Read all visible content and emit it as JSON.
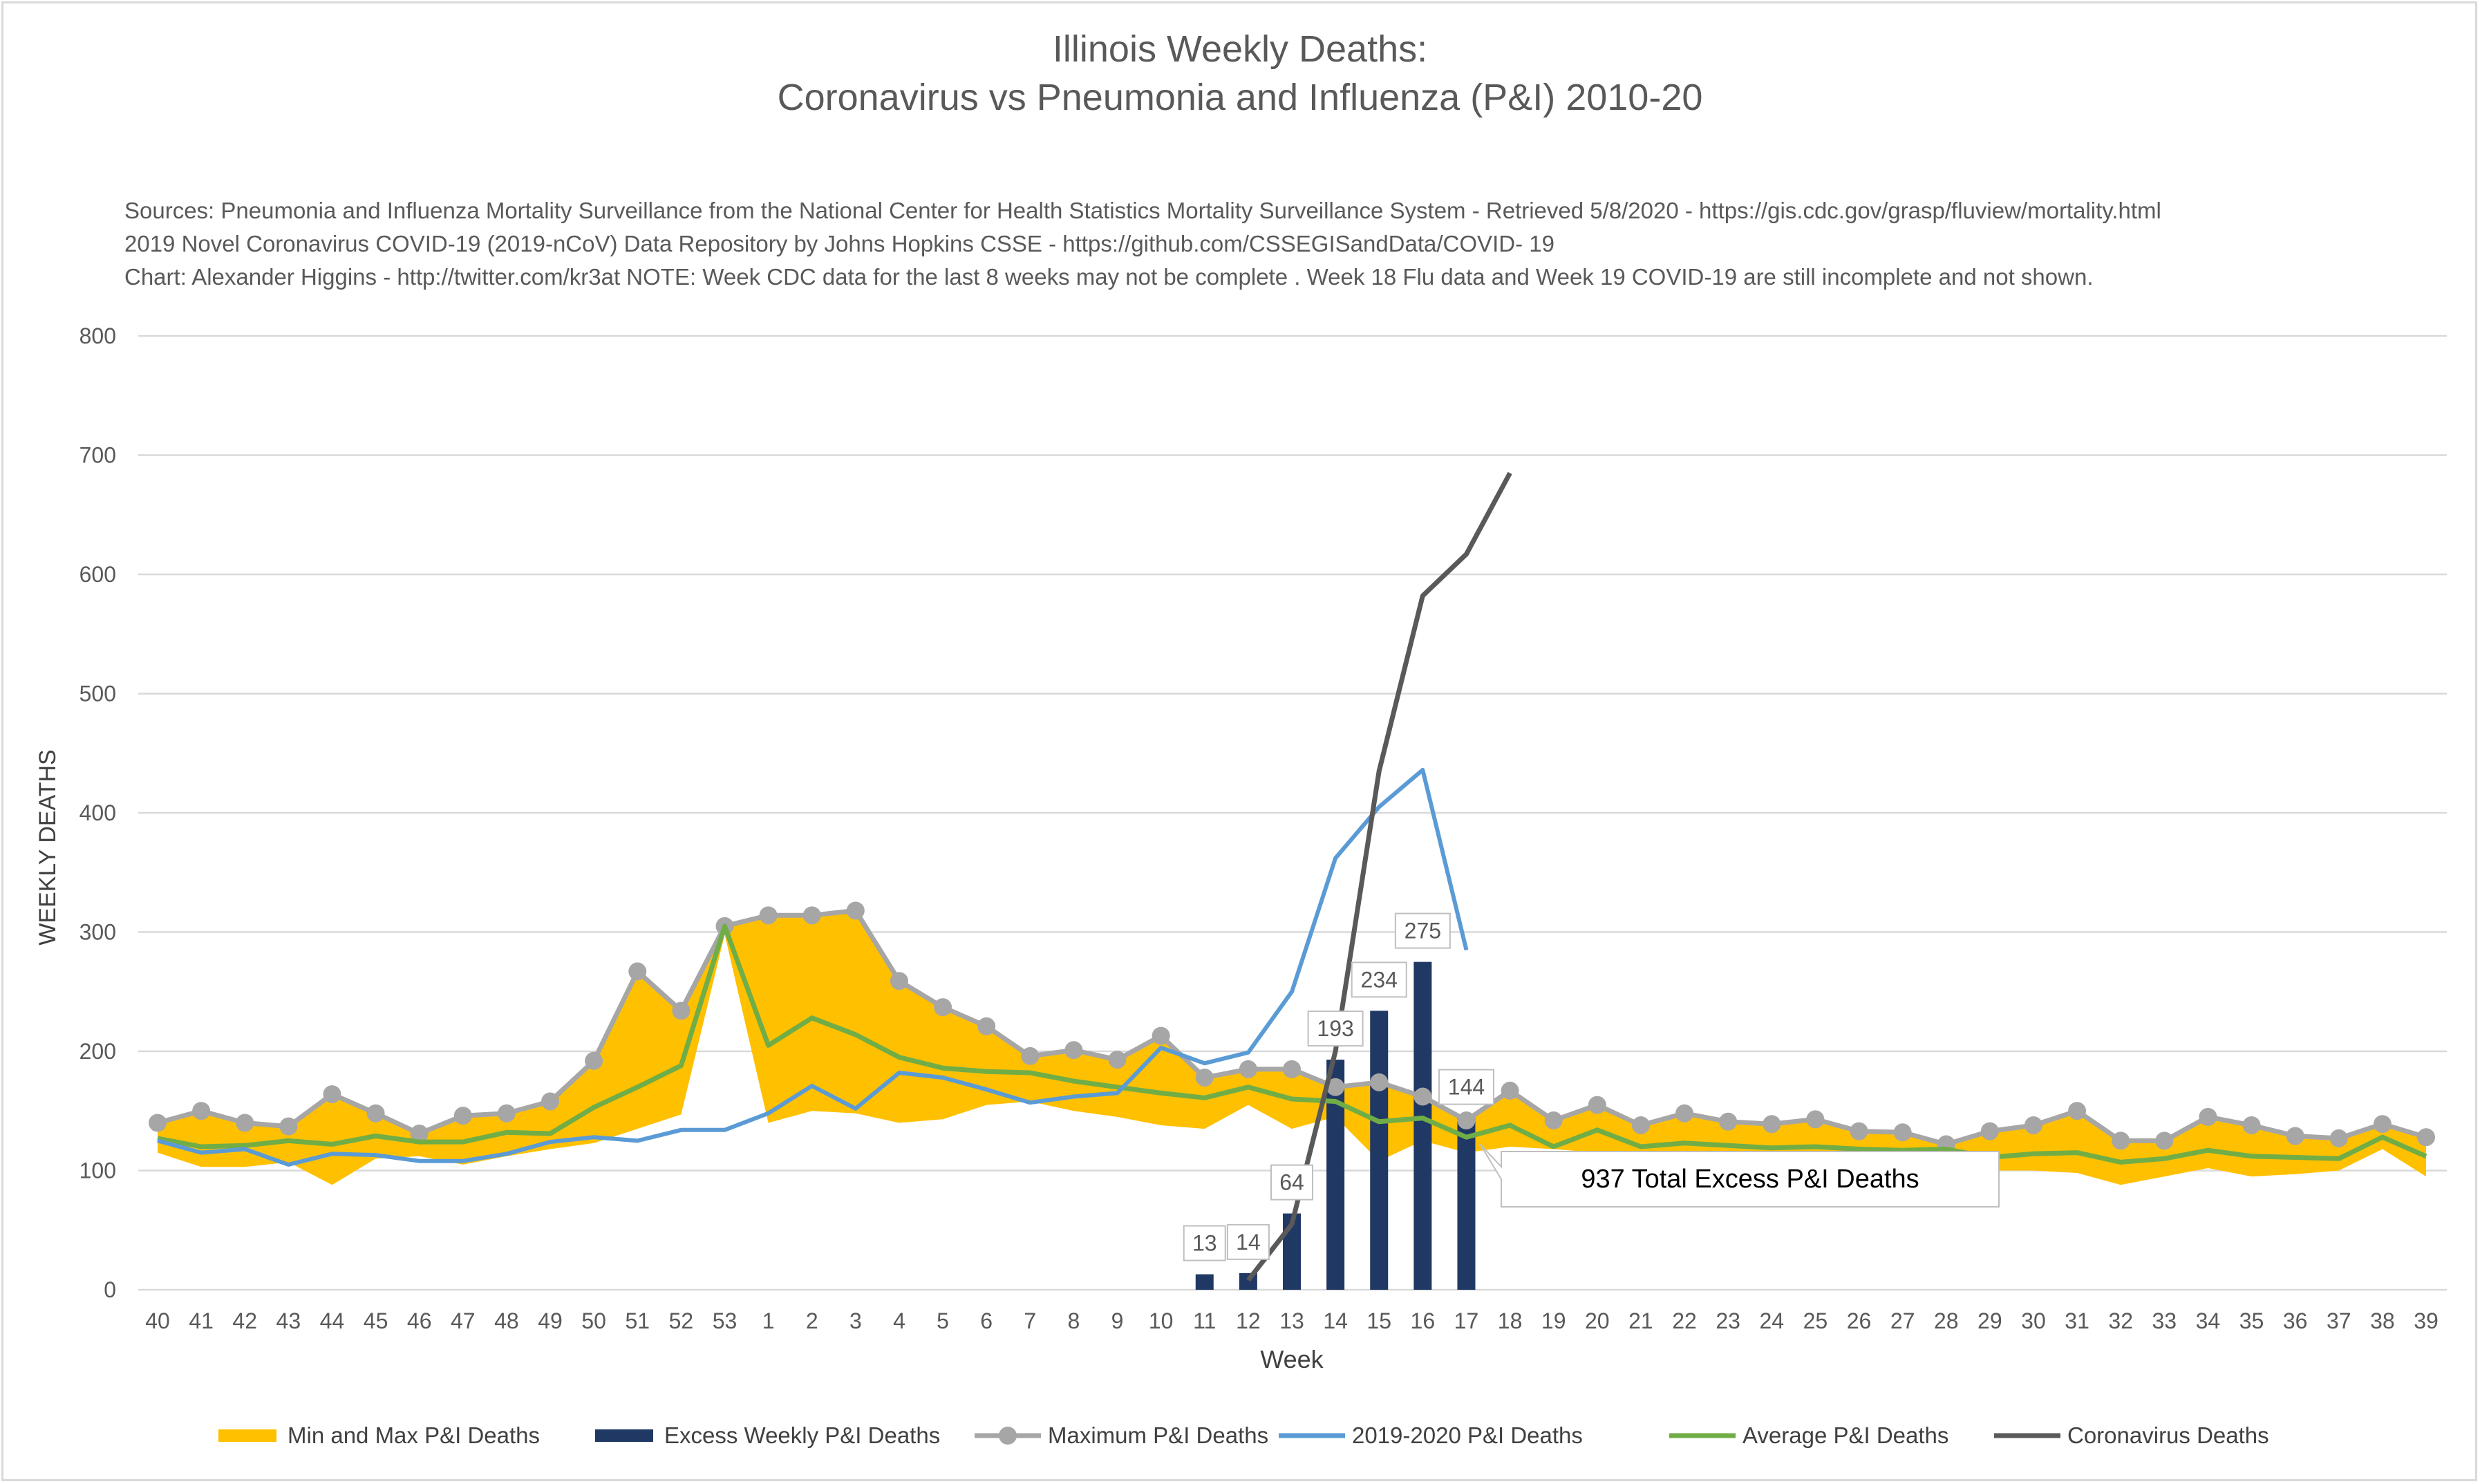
{
  "title_line1": "Illinois Weekly Deaths:",
  "title_line2": "Coronavirus vs Pneumonia and Influenza (P&I) 2010-20",
  "sources": [
    "Sources: Pneumonia and Influenza Mortality Surveillance from the National Center for Health Statistics Mortality Surveillance System - Retrieved 5/8/2020 - https://gis.cdc.gov/grasp/fluview/mortality.html",
    "2019 Novel Coronavirus COVID-19 (2019-nCoV) Data Repository by Johns Hopkins CSSE - https://github.com/CSSEGISandData/COVID- 19",
    "Chart: Alexander Higgins - http://twitter.com/kr3at   NOTE: Week CDC data for the last 8 weeks may not be complete . Week 18 Flu data and Week 19 COVID-19 are still incomplete and not shown."
  ],
  "chart_data": {
    "type": "line",
    "xlabel": "Week",
    "ylabel": "WEEKLY DEATHS",
    "ylim": [
      0,
      800
    ],
    "yticks": [
      0,
      100,
      200,
      300,
      400,
      500,
      600,
      700,
      800
    ],
    "grid": true,
    "legend_position": "bottom",
    "categories": [
      "40",
      "41",
      "42",
      "43",
      "44",
      "45",
      "46",
      "47",
      "48",
      "49",
      "50",
      "51",
      "52",
      "53",
      "1",
      "2",
      "3",
      "4",
      "5",
      "6",
      "7",
      "8",
      "9",
      "10",
      "11",
      "12",
      "13",
      "14",
      "15",
      "16",
      "17",
      "18",
      "19",
      "20",
      "21",
      "22",
      "23",
      "24",
      "25",
      "26",
      "27",
      "28",
      "29",
      "30",
      "31",
      "32",
      "33",
      "34",
      "35",
      "36",
      "37",
      "38",
      "39"
    ],
    "series": [
      {
        "name": "Min and Max P&I Deaths",
        "kind": "band",
        "color": "#ffc000",
        "lower": [
          115,
          103,
          103,
          107,
          88,
          110,
          112,
          105,
          112,
          118,
          123,
          135,
          147,
          298,
          140,
          150,
          148,
          140,
          143,
          155,
          158,
          150,
          145,
          138,
          135,
          155,
          135,
          145,
          108,
          125,
          115,
          120,
          118,
          115,
          112,
          115,
          112,
          110,
          115,
          112,
          110,
          115,
          100,
          100,
          98,
          88,
          95,
          102,
          95,
          97,
          100,
          118,
          95
        ],
        "upper": [
          140,
          150,
          140,
          137,
          164,
          148,
          131,
          146,
          148,
          158,
          192,
          267,
          234,
          305,
          314,
          314,
          318,
          259,
          237,
          221,
          196,
          201,
          193,
          213,
          178,
          185,
          185,
          170,
          174,
          162,
          142,
          167,
          142,
          155,
          138,
          148,
          141,
          139,
          143,
          133,
          132,
          122,
          133,
          138,
          150,
          125,
          125,
          145,
          138,
          129,
          127,
          139,
          128
        ]
      },
      {
        "name": "Excess Weekly P&I Deaths",
        "kind": "bar",
        "color": "#203864",
        "values": [
          null,
          null,
          null,
          null,
          null,
          null,
          null,
          null,
          null,
          null,
          null,
          null,
          null,
          null,
          null,
          null,
          null,
          null,
          null,
          null,
          null,
          null,
          null,
          null,
          13,
          14,
          64,
          193,
          234,
          275,
          144,
          null,
          null,
          null,
          null,
          null,
          null,
          null,
          null,
          null,
          null,
          null,
          null,
          null,
          null,
          null,
          null,
          null,
          null,
          null,
          null,
          null,
          null
        ]
      },
      {
        "name": "Maximum P&I Deaths",
        "kind": "line-marker",
        "color": "#a6a6a6",
        "values": [
          140,
          150,
          140,
          137,
          164,
          148,
          131,
          146,
          148,
          158,
          192,
          267,
          234,
          305,
          314,
          314,
          318,
          259,
          237,
          221,
          196,
          201,
          193,
          213,
          178,
          185,
          185,
          170,
          174,
          162,
          142,
          167,
          142,
          155,
          138,
          148,
          141,
          139,
          143,
          133,
          132,
          122,
          133,
          138,
          150,
          125,
          125,
          145,
          138,
          129,
          127,
          139,
          128
        ]
      },
      {
        "name": "2019-2020 P&I Deaths",
        "kind": "line",
        "color": "#5b9bd5",
        "values": [
          125,
          115,
          118,
          105,
          114,
          113,
          108,
          108,
          114,
          124,
          128,
          125,
          134,
          134,
          148,
          171,
          152,
          182,
          178,
          168,
          157,
          162,
          165,
          203,
          190,
          199,
          250,
          362,
          405,
          436,
          285,
          null,
          null,
          null,
          null,
          null,
          null,
          null,
          null,
          null,
          null,
          null,
          null,
          null,
          null,
          null,
          null,
          null,
          null,
          null,
          null,
          null,
          null
        ]
      },
      {
        "name": "Average P&I Deaths",
        "kind": "line",
        "color": "#70ad47",
        "values": [
          127,
          120,
          121,
          125,
          122,
          129,
          124,
          124,
          132,
          131,
          153,
          170,
          188,
          305,
          205,
          228,
          214,
          195,
          186,
          183,
          182,
          175,
          170,
          165,
          161,
          170,
          160,
          158,
          141,
          144,
          128,
          138,
          120,
          134,
          120,
          123,
          121,
          119,
          120,
          118,
          117,
          118,
          111,
          114,
          115,
          107,
          110,
          117,
          112,
          111,
          110,
          128,
          112
        ]
      },
      {
        "name": "Coronavirus Deaths",
        "kind": "line",
        "color": "#595959",
        "values": [
          null,
          null,
          null,
          null,
          null,
          null,
          null,
          null,
          null,
          null,
          null,
          null,
          null,
          null,
          null,
          null,
          null,
          null,
          null,
          null,
          null,
          null,
          null,
          null,
          null,
          8,
          55,
          200,
          435,
          582,
          617,
          685,
          null,
          null,
          null,
          null,
          null,
          null,
          null,
          null,
          null,
          null,
          null,
          null,
          null,
          null,
          null,
          null,
          null,
          null,
          null,
          null,
          null
        ]
      }
    ],
    "data_labels": [
      13,
      14,
      64,
      193,
      234,
      275,
      144
    ],
    "annotation": "937 Total Excess P&I Deaths"
  }
}
